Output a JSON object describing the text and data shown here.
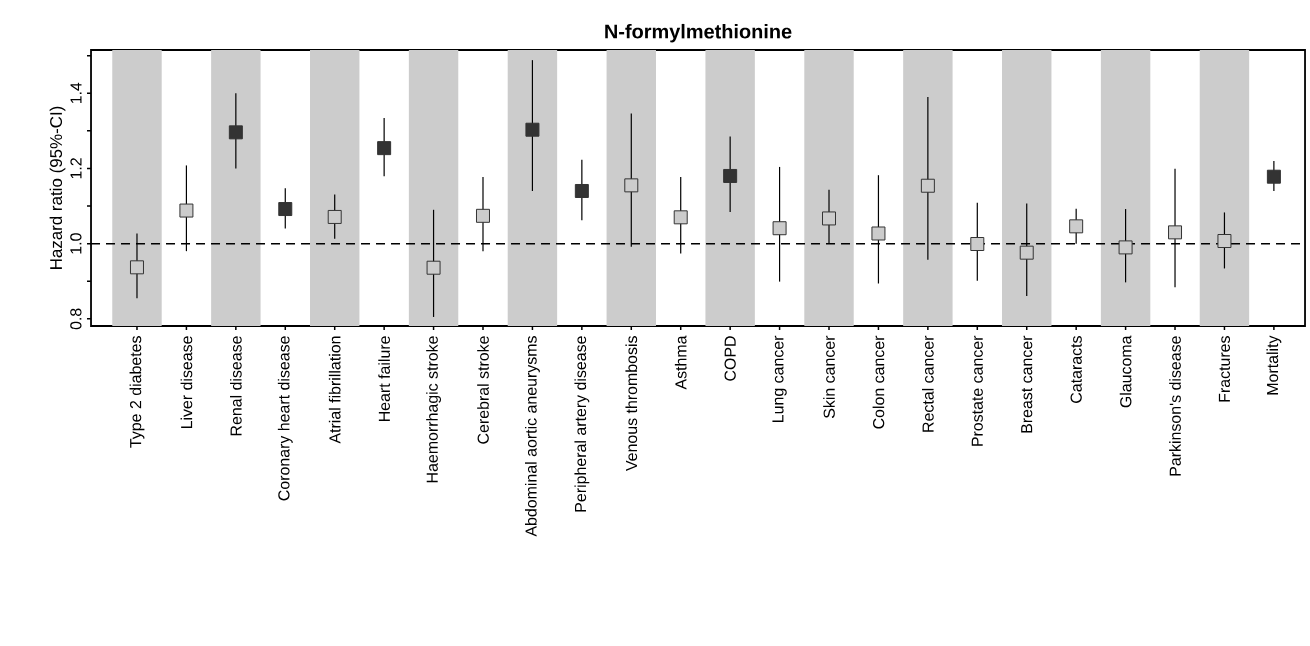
{
  "chart_data": {
    "type": "scatter",
    "title": "N-formylmethionine",
    "ylabel": "Hazard ratio (95%-CI)",
    "categories": [
      "Type 2 diabetes",
      "Liver disease",
      "Renal disease",
      "Coronary heart disease",
      "Atrial fibrillation",
      "Heart failure",
      "Haemorrhagic stroke",
      "Cerebral stroke",
      "Abdominal aortic aneurysms",
      "Peripheral artery disease",
      "Venous thrombosis",
      "Asthma",
      "COPD",
      "Lung cancer",
      "Skin cancer",
      "Colon cancer",
      "Rectal cancer",
      "Prostate cancer",
      "Breast cancer",
      "Cataracts",
      "Glaucoma",
      "Parkinson's disease",
      "Fractures",
      "Mortality"
    ],
    "values": [
      0.937,
      1.088,
      1.296,
      1.092,
      1.071,
      1.254,
      0.936,
      1.074,
      1.303,
      1.14,
      1.155,
      1.07,
      1.18,
      1.041,
      1.067,
      1.027,
      1.154,
      0.999,
      0.976,
      1.046,
      0.99,
      1.03,
      1.007,
      1.178
    ],
    "errors": [
      [
        0.855,
        1.027
      ],
      [
        0.98,
        1.208
      ],
      [
        1.2,
        1.4
      ],
      [
        1.04,
        1.147
      ],
      [
        1.013,
        1.131
      ],
      [
        1.179,
        1.334
      ],
      [
        0.805,
        1.09
      ],
      [
        0.98,
        1.177
      ],
      [
        1.14,
        1.488
      ],
      [
        1.062,
        1.223
      ],
      [
        0.992,
        1.346
      ],
      [
        0.974,
        1.177
      ],
      [
        1.084,
        1.285
      ],
      [
        0.899,
        1.204
      ],
      [
        1.0,
        1.143
      ],
      [
        0.894,
        1.182
      ],
      [
        0.957,
        1.39
      ],
      [
        0.901,
        1.109
      ],
      [
        0.861,
        1.107
      ],
      [
        1.0,
        1.093
      ],
      [
        0.897,
        1.092
      ],
      [
        0.884,
        1.199
      ],
      [
        0.934,
        1.083
      ],
      [
        1.14,
        1.22
      ]
    ],
    "colors": [
      "#cccccc",
      "#cccccc",
      "#333333",
      "#333333",
      "#cccccc",
      "#333333",
      "#cccccc",
      "#cccccc",
      "#333333",
      "#333333",
      "#cccccc",
      "#cccccc",
      "#333333",
      "#cccccc",
      "#cccccc",
      "#cccccc",
      "#cccccc",
      "#cccccc",
      "#cccccc",
      "#cccccc",
      "#cccccc",
      "#cccccc",
      "#cccccc",
      "#333333"
    ],
    "marker": "square",
    "ylim": [
      0.781,
      1.515
    ],
    "yticks": [
      {
        "value": 0.8,
        "label": "0.8"
      },
      {
        "value": 0.9,
        "label": null
      },
      {
        "value": 1.0,
        "label": "1.0"
      },
      {
        "value": 1.1,
        "label": null
      },
      {
        "value": 1.2,
        "label": "1.2"
      },
      {
        "value": 1.3,
        "label": null
      },
      {
        "value": 1.4,
        "label": "1.4"
      },
      {
        "value": 1.5,
        "label": null
      }
    ],
    "ref_lines": [
      {
        "axis": "y",
        "value": 1.0,
        "line_style": "dashed"
      }
    ],
    "bands": [
      {
        "axis": "x",
        "from": "Type 2 diabetes",
        "to": "Type 2 diabetes",
        "color": "#cccccc"
      },
      {
        "axis": "x",
        "from": "Renal disease",
        "to": "Renal disease",
        "color": "#cccccc"
      },
      {
        "axis": "x",
        "from": "Atrial fibrillation",
        "to": "Atrial fibrillation",
        "color": "#cccccc"
      },
      {
        "axis": "x",
        "from": "Haemorrhagic stroke",
        "to": "Haemorrhagic stroke",
        "color": "#cccccc"
      },
      {
        "axis": "x",
        "from": "Abdominal aortic aneurysms",
        "to": "Abdominal aortic aneurysms",
        "color": "#cccccc"
      },
      {
        "axis": "x",
        "from": "Venous thrombosis",
        "to": "Venous thrombosis",
        "color": "#cccccc"
      },
      {
        "axis": "x",
        "from": "COPD",
        "to": "COPD",
        "color": "#cccccc"
      },
      {
        "axis": "x",
        "from": "Skin cancer",
        "to": "Skin cancer",
        "color": "#cccccc"
      },
      {
        "axis": "x",
        "from": "Rectal cancer",
        "to": "Rectal cancer",
        "color": "#cccccc"
      },
      {
        "axis": "x",
        "from": "Breast cancer",
        "to": "Breast cancer",
        "color": "#cccccc"
      },
      {
        "axis": "x",
        "from": "Glaucoma",
        "to": "Glaucoma",
        "color": "#cccccc"
      },
      {
        "axis": "x",
        "from": "Fractures",
        "to": "Fractures",
        "color": "#cccccc"
      }
    ]
  }
}
